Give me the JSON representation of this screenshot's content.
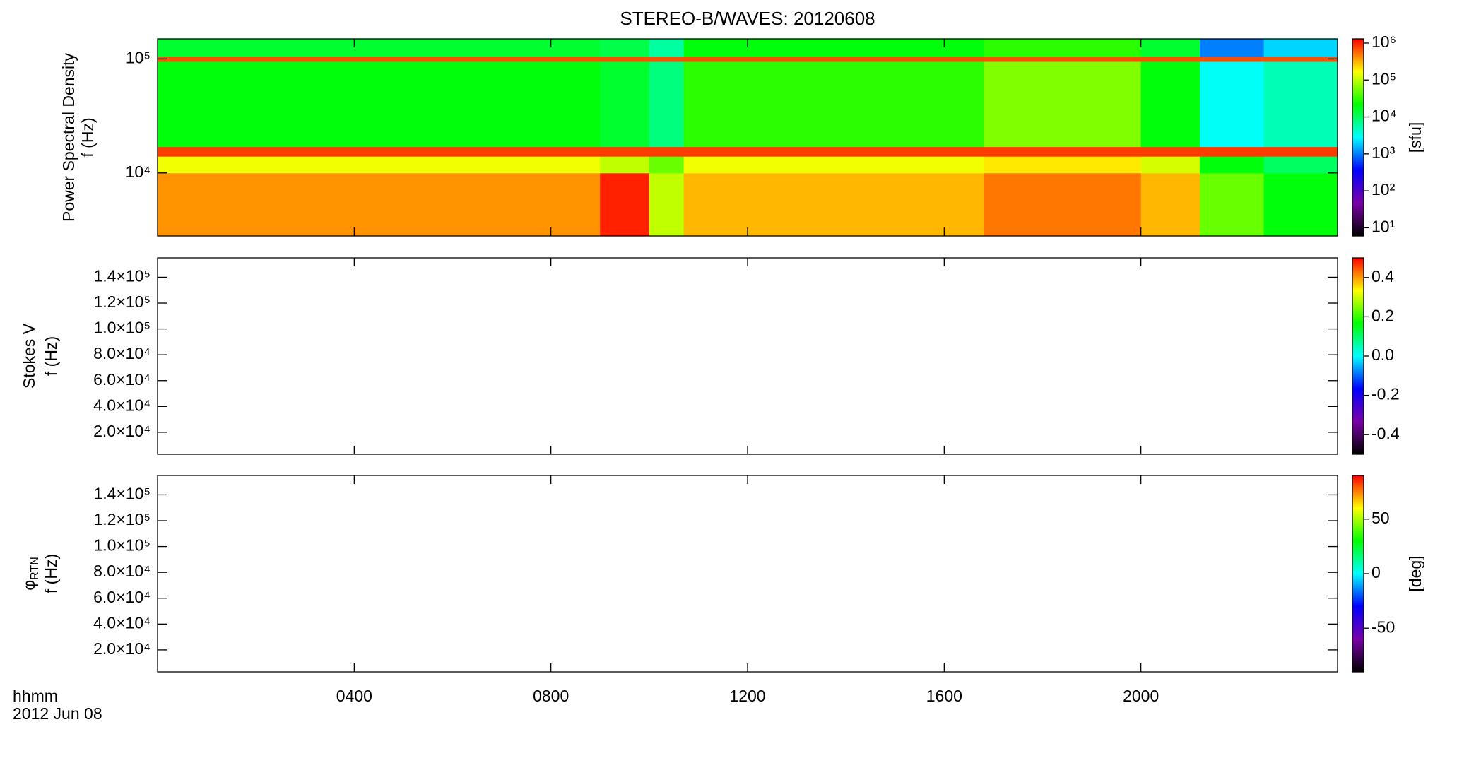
{
  "title": "STEREO-B/WAVES: 20120608",
  "time_label": "hhmm",
  "date_label": "2012 Jun 08",
  "xaxis": {
    "xlim": [
      0,
      24
    ],
    "xticks": [
      {
        "value": 4,
        "label": "0400"
      },
      {
        "value": 8,
        "label": "0800"
      },
      {
        "value": 12,
        "label": "1200"
      },
      {
        "value": 16,
        "label": "1600"
      },
      {
        "value": 20,
        "label": "2000"
      }
    ]
  },
  "chart_data": [
    {
      "type": "heatmap",
      "ylabel": [
        {
          "text": "Power Spectral Density"
        },
        {
          "text": "f (Hz)"
        }
      ],
      "ylog": true,
      "ylim": [
        2800,
        150000
      ],
      "yticks": [
        {
          "value": 10000,
          "label": "10⁴"
        },
        {
          "value": 100000,
          "label": "10⁵"
        }
      ],
      "x_edges": [
        0,
        9,
        10,
        10.7,
        16.8,
        20,
        21.2,
        22.5,
        24
      ],
      "y_edges": [
        2800,
        10000,
        14000,
        17000,
        95000,
        105000,
        150000
      ],
      "z": [
        [
          400000,
          1000000,
          100000,
          300000,
          500000,
          300000,
          50000,
          20000
        ],
        [
          150000,
          100000,
          50000,
          150000,
          200000,
          120000,
          20000,
          10000
        ],
        [
          800000,
          800000,
          800000,
          800000,
          800000,
          800000,
          800000,
          800000
        ],
        [
          20000,
          15000,
          8000,
          30000,
          60000,
          20000,
          3000,
          5000
        ],
        [
          700000,
          700000,
          700000,
          700000,
          700000,
          700000,
          700000,
          700000
        ],
        [
          15000,
          12000,
          6000,
          20000,
          30000,
          15000,
          1000,
          2000
        ]
      ],
      "colorbar": {
        "log": true,
        "zlim": [
          6,
          1300000
        ],
        "label": "[sfu]",
        "zticks": [
          {
            "value": 10,
            "label": "10¹"
          },
          {
            "value": 100,
            "label": "10²"
          },
          {
            "value": 1000,
            "label": "10³"
          },
          {
            "value": 10000,
            "label": "10⁴"
          },
          {
            "value": 100000,
            "label": "10⁵"
          },
          {
            "value": 1000000,
            "label": "10⁶"
          }
        ]
      }
    },
    {
      "type": "heatmap",
      "ylabel": [
        {
          "text": "Stokes V"
        },
        {
          "text": "f (Hz)"
        }
      ],
      "ylog": false,
      "ylim": [
        3000,
        155000
      ],
      "yticks": [
        {
          "value": 20000,
          "label": "2.0×10⁴"
        },
        {
          "value": 40000,
          "label": "4.0×10⁴"
        },
        {
          "value": 60000,
          "label": "6.0×10⁴"
        },
        {
          "value": 80000,
          "label": "8.0×10⁴"
        },
        {
          "value": 100000,
          "label": "1.0×10⁵"
        },
        {
          "value": 120000,
          "label": "1.2×10⁵"
        },
        {
          "value": 140000,
          "label": "1.4×10⁵"
        }
      ],
      "colorbar": {
        "log": false,
        "zlim": [
          -0.5,
          0.5
        ],
        "zticks": [
          -0.4,
          -0.2,
          {
            "value": 0,
            "label": "0.0"
          },
          0.2,
          0.4
        ]
      }
    },
    {
      "type": "heatmap",
      "ylabel": [
        {
          "text": "φ",
          "sub": "RTN"
        },
        {
          "text": "f (Hz)"
        }
      ],
      "ylog": false,
      "ylim": [
        3000,
        155000
      ],
      "yticks": [
        {
          "value": 20000,
          "label": "2.0×10⁴"
        },
        {
          "value": 40000,
          "label": "4.0×10⁴"
        },
        {
          "value": 60000,
          "label": "6.0×10⁴"
        },
        {
          "value": 80000,
          "label": "8.0×10⁴"
        },
        {
          "value": 100000,
          "label": "1.0×10⁵"
        },
        {
          "value": 120000,
          "label": "1.2×10⁵"
        },
        {
          "value": 140000,
          "label": "1.4×10⁵"
        }
      ],
      "colorbar": {
        "log": false,
        "zlim": [
          -90,
          90
        ],
        "label": "[deg]",
        "zticks": [
          -50,
          0,
          50
        ]
      }
    }
  ],
  "colormap": [
    "#000000",
    "#7a00a8",
    "#0000ff",
    "#00ffff",
    "#00ff00",
    "#ffff00",
    "#ff0000"
  ]
}
